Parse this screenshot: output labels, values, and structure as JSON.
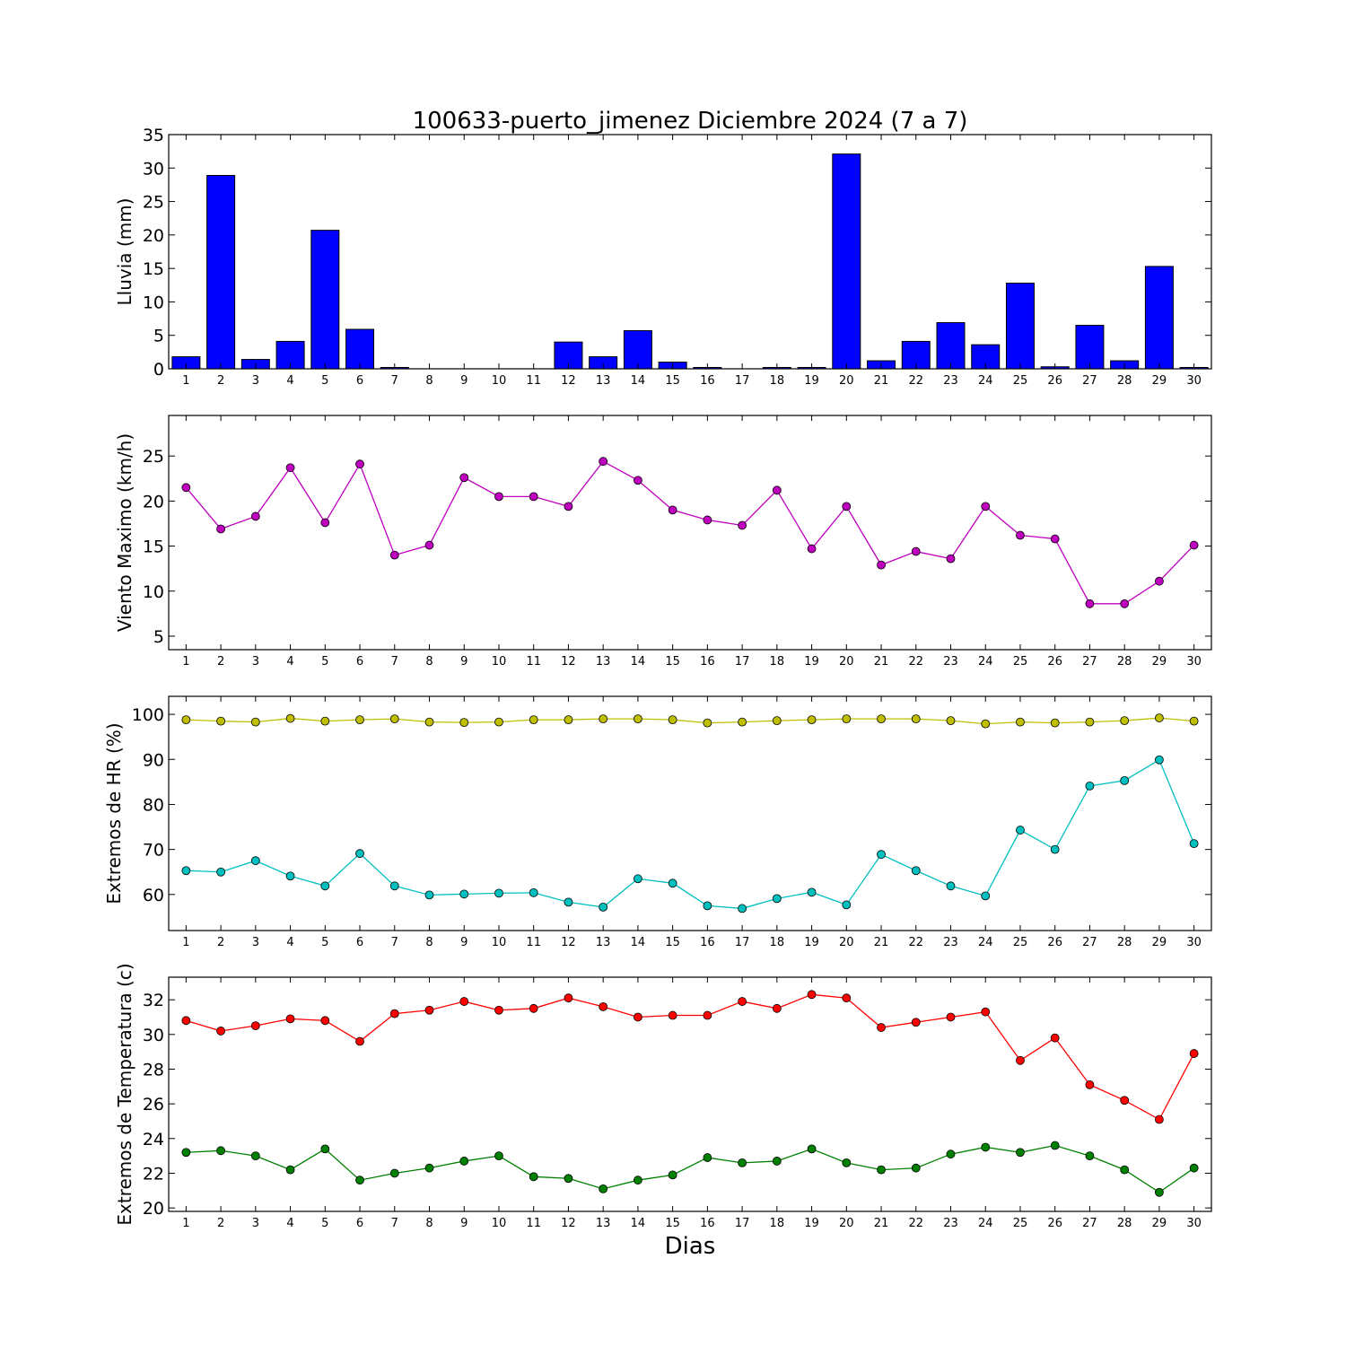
{
  "title": "100633-puerto_jimenez Diciembre 2024  (7 a 7)",
  "xlabel": "Dias",
  "chart_data": [
    {
      "type": "bar",
      "title": "100633-puerto_jimenez Diciembre 2024  (7 a 7)",
      "ylabel": "Lluvia (mm)",
      "ylim": [
        0,
        35
      ],
      "yticks": [
        0,
        5,
        10,
        15,
        20,
        25,
        30,
        35
      ],
      "categories": [
        "1",
        "2",
        "3",
        "4",
        "5",
        "6",
        "7",
        "8",
        "9",
        "10",
        "11",
        "12",
        "13",
        "14",
        "15",
        "16",
        "17",
        "18",
        "19",
        "20",
        "21",
        "22",
        "23",
        "24",
        "25",
        "26",
        "27",
        "28",
        "29",
        "30"
      ],
      "values": [
        1.8,
        28.9,
        1.4,
        4.1,
        20.7,
        5.9,
        0.2,
        0.0,
        0.0,
        0.0,
        0.0,
        4.0,
        1.8,
        5.7,
        1.0,
        0.2,
        0.0,
        0.2,
        0.2,
        32.1,
        1.2,
        4.1,
        6.9,
        3.6,
        12.8,
        0.3,
        6.5,
        1.2,
        15.3,
        0.2
      ],
      "colors": {
        "bar": "#0000ff"
      }
    },
    {
      "type": "line",
      "ylabel": "Viento Maximo (km/h)",
      "ylim": [
        3.5,
        29.5
      ],
      "yticks": [
        5,
        10,
        15,
        20,
        25
      ],
      "x": [
        1,
        2,
        3,
        4,
        5,
        6,
        7,
        8,
        9,
        10,
        11,
        12,
        13,
        14,
        15,
        16,
        17,
        18,
        19,
        20,
        21,
        22,
        23,
        24,
        25,
        26,
        27,
        28,
        29,
        30
      ],
      "series": [
        {
          "values": [
            21.5,
            16.9,
            18.3,
            23.7,
            17.6,
            24.1,
            14.0,
            15.1,
            22.6,
            20.5,
            20.5,
            19.4,
            24.4,
            22.3,
            19.0,
            17.9,
            17.3,
            21.2,
            14.7,
            19.4,
            12.9,
            14.4,
            13.6,
            19.4,
            16.2,
            15.8,
            8.6,
            8.6,
            11.1,
            15.1
          ],
          "color": "#bf00bf"
        }
      ]
    },
    {
      "type": "line",
      "ylabel": "Extremos de HR (%)",
      "ylim": [
        52,
        104
      ],
      "yticks": [
        60,
        70,
        80,
        90,
        100
      ],
      "x": [
        1,
        2,
        3,
        4,
        5,
        6,
        7,
        8,
        9,
        10,
        11,
        12,
        13,
        14,
        15,
        16,
        17,
        18,
        19,
        20,
        21,
        22,
        23,
        24,
        25,
        26,
        27,
        28,
        29,
        30
      ],
      "series": [
        {
          "values": [
            98.8,
            98.5,
            98.3,
            99.1,
            98.5,
            98.8,
            99.0,
            98.3,
            98.2,
            98.3,
            98.8,
            98.8,
            99.0,
            99.0,
            98.8,
            98.1,
            98.3,
            98.6,
            98.8,
            99.0,
            99.0,
            99.0,
            98.6,
            97.9,
            98.3,
            98.1,
            98.3,
            98.6,
            99.2,
            98.5
          ],
          "color": "#bfbf00"
        },
        {
          "values": [
            65.3,
            65.0,
            67.5,
            64.1,
            61.9,
            69.1,
            61.9,
            59.9,
            60.1,
            60.3,
            60.4,
            58.3,
            57.2,
            63.5,
            62.5,
            57.5,
            56.9,
            59.1,
            60.5,
            57.7,
            68.9,
            65.3,
            61.9,
            59.7,
            74.3,
            70.0,
            84.1,
            85.3,
            89.9,
            71.3
          ],
          "color": "#00bfbf"
        }
      ]
    },
    {
      "type": "line",
      "ylabel": "Extremos de Temperatura (c)",
      "ylim": [
        19.8,
        33.3
      ],
      "yticks": [
        20,
        22,
        24,
        26,
        28,
        30,
        32
      ],
      "x": [
        1,
        2,
        3,
        4,
        5,
        6,
        7,
        8,
        9,
        10,
        11,
        12,
        13,
        14,
        15,
        16,
        17,
        18,
        19,
        20,
        21,
        22,
        23,
        24,
        25,
        26,
        27,
        28,
        29,
        30
      ],
      "series": [
        {
          "values": [
            30.8,
            30.2,
            30.5,
            30.9,
            30.8,
            29.6,
            31.2,
            31.4,
            31.9,
            31.4,
            31.5,
            32.1,
            31.6,
            31.0,
            31.1,
            31.1,
            31.9,
            31.5,
            32.3,
            32.1,
            30.4,
            30.7,
            31.0,
            31.3,
            28.5,
            29.8,
            27.1,
            26.2,
            25.1,
            28.9
          ],
          "color": "#ff0000"
        },
        {
          "values": [
            23.2,
            23.3,
            23.0,
            22.2,
            23.4,
            21.6,
            22.0,
            22.3,
            22.7,
            23.0,
            21.8,
            21.7,
            21.1,
            21.6,
            21.9,
            22.9,
            22.6,
            22.7,
            23.4,
            22.6,
            22.2,
            22.3,
            23.1,
            23.5,
            23.2,
            23.6,
            23.0,
            22.2,
            20.9,
            22.3
          ],
          "color": "#008000"
        }
      ]
    }
  ]
}
